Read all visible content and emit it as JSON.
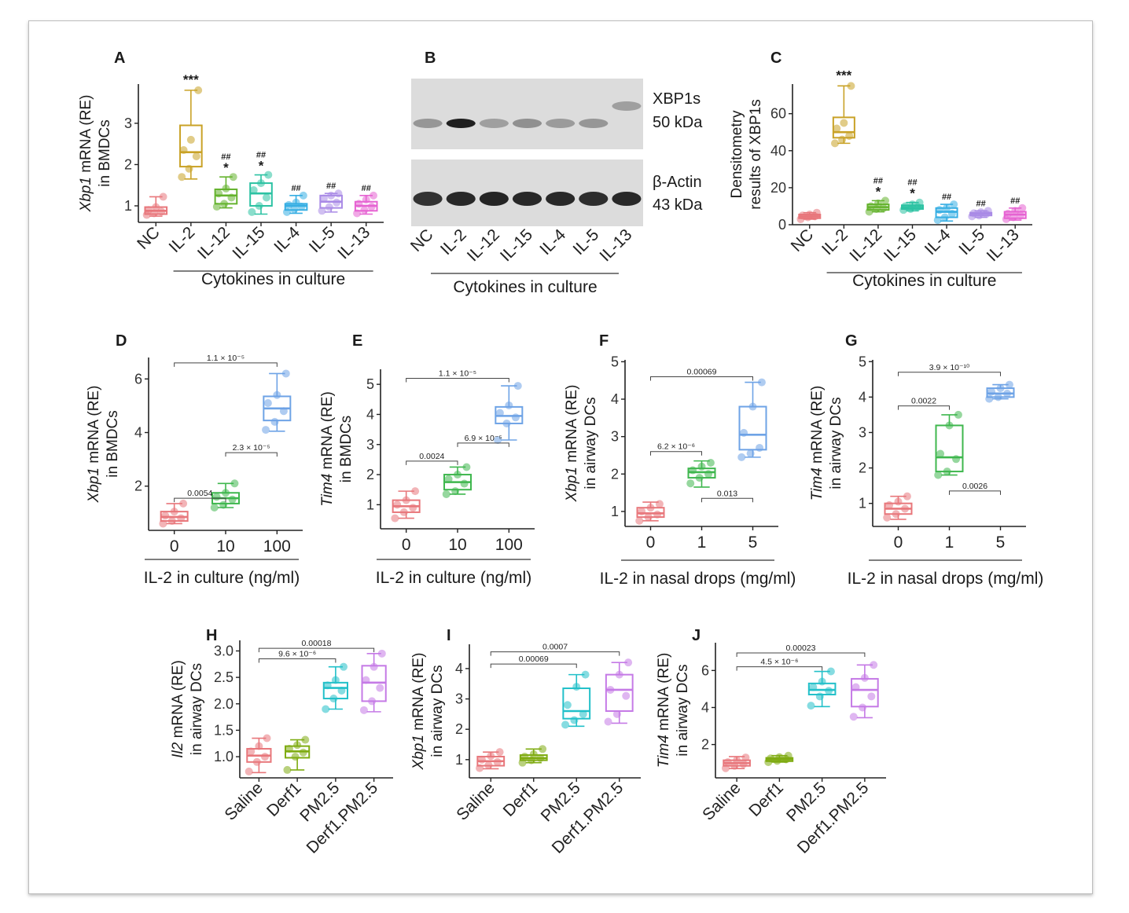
{
  "colors": {
    "NC": "#e8777b",
    "IL-2": "#c9a227",
    "IL-12": "#65b32e",
    "IL-15": "#2cc2a3",
    "IL-4": "#37aee3",
    "IL-5": "#a98ae6",
    "IL-13": "#e663d2",
    "dose0": "#e8777b",
    "dose1": "#3fb74e",
    "dose2": "#6ea3e6",
    "Saline": "#e8777b",
    "Derf1": "#7fac12",
    "PM2.5": "#22c0c9",
    "Derf1.PM2.5": "#c57ae6"
  },
  "blot": {
    "panel_label": "B",
    "lanes": [
      "NC",
      "IL-2",
      "IL-12",
      "IL-15",
      "IL-4",
      "IL-5",
      "IL-13"
    ],
    "group_label": "Cytokines in culture",
    "rows": [
      {
        "name": "XBP1s",
        "size": "50 kDa"
      },
      {
        "name": "β-Actin",
        "size": "43 kDa"
      }
    ]
  },
  "chart_data": [
    {
      "panel": "A",
      "type": "box",
      "ylabel_italic": "Xbp1",
      "ylabel_rest": " mRNA (RE)",
      "ylabel2": "in BMDCs",
      "xlabel": "Cytokines in culture",
      "categories": [
        "NC",
        "IL-2",
        "IL-12",
        "IL-15",
        "IL-4",
        "IL-5",
        "IL-13"
      ],
      "colorkeys": [
        "NC",
        "IL-2",
        "IL-12",
        "IL-15",
        "IL-4",
        "IL-5",
        "IL-13"
      ],
      "ylim": [
        0.6,
        3.95
      ],
      "yticks": [
        1,
        2,
        3
      ],
      "boxes": [
        {
          "min": 0.75,
          "q1": 0.8,
          "med": 0.88,
          "q3": 0.97,
          "max": 1.22,
          "points": [
            0.78,
            0.82,
            0.86,
            0.9,
            0.97,
            1.22
          ]
        },
        {
          "min": 1.65,
          "q1": 1.95,
          "med": 2.3,
          "q3": 2.95,
          "max": 3.8,
          "points": [
            1.7,
            1.9,
            2.2,
            2.35,
            2.6,
            3.8
          ]
        },
        {
          "min": 0.95,
          "q1": 1.05,
          "med": 1.25,
          "q3": 1.4,
          "max": 1.7,
          "points": [
            0.98,
            1.05,
            1.2,
            1.3,
            1.42,
            1.7
          ]
        },
        {
          "min": 0.8,
          "q1": 1.0,
          "med": 1.3,
          "q3": 1.55,
          "max": 1.75,
          "points": [
            0.85,
            1.0,
            1.2,
            1.38,
            1.55,
            1.75
          ]
        },
        {
          "min": 0.82,
          "q1": 0.9,
          "med": 1.0,
          "q3": 1.05,
          "max": 1.25,
          "points": [
            0.85,
            0.92,
            0.98,
            1.02,
            1.08,
            1.25
          ]
        },
        {
          "min": 0.85,
          "q1": 0.95,
          "med": 1.1,
          "q3": 1.25,
          "max": 1.3,
          "points": [
            0.88,
            0.97,
            1.08,
            1.18,
            1.25,
            1.3
          ]
        },
        {
          "min": 0.8,
          "q1": 0.88,
          "med": 1.0,
          "q3": 1.1,
          "max": 1.25,
          "points": [
            0.82,
            0.9,
            0.98,
            1.05,
            1.15,
            1.25
          ]
        }
      ],
      "stars": [
        "",
        "***",
        "*",
        "*",
        "",
        "",
        ""
      ],
      "hashes": [
        "",
        "",
        "##",
        "##",
        "##",
        "##",
        "##"
      ],
      "pvalues": []
    },
    {
      "panel": "C",
      "type": "box",
      "ylabel_italic": "",
      "ylabel_rest": "Densitometry",
      "ylabel2": "results of XBP1s",
      "xlabel": "Cytokines in culture",
      "categories": [
        "NC",
        "IL-2",
        "IL-12",
        "IL-15",
        "IL-4",
        "IL-5",
        "IL-13"
      ],
      "colorkeys": [
        "NC",
        "IL-2",
        "IL-12",
        "IL-15",
        "IL-4",
        "IL-5",
        "IL-13"
      ],
      "ylim": [
        0,
        76
      ],
      "yticks": [
        0,
        20,
        40,
        60
      ],
      "boxes": [
        {
          "min": 3,
          "q1": 3.5,
          "med": 4.5,
          "q3": 5.5,
          "max": 6.5,
          "points": [
            3,
            4,
            4.5,
            5,
            5.5,
            6.5
          ]
        },
        {
          "min": 44,
          "q1": 47,
          "med": 50,
          "q3": 58,
          "max": 75,
          "points": [
            44,
            46,
            48,
            52,
            55,
            75
          ]
        },
        {
          "min": 7,
          "q1": 8,
          "med": 9.5,
          "q3": 11,
          "max": 13,
          "points": [
            7,
            8.5,
            9,
            10,
            11.5,
            13
          ]
        },
        {
          "min": 7.5,
          "q1": 8.5,
          "med": 9.5,
          "q3": 10.5,
          "max": 12,
          "points": [
            8,
            8.5,
            9.5,
            10,
            11,
            12
          ]
        },
        {
          "min": 2,
          "q1": 4,
          "med": 7,
          "q3": 9,
          "max": 11,
          "points": [
            2.5,
            4,
            6,
            8,
            9,
            11
          ]
        },
        {
          "min": 4,
          "q1": 5,
          "med": 6,
          "q3": 6.5,
          "max": 7.5,
          "points": [
            4.5,
            5,
            5.8,
            6.2,
            6.8,
            7.5
          ]
        },
        {
          "min": 2.5,
          "q1": 3.5,
          "med": 5.5,
          "q3": 7,
          "max": 9,
          "points": [
            3,
            4,
            5,
            6,
            7.5,
            9
          ]
        }
      ],
      "stars": [
        "",
        "***",
        "*",
        "*",
        "",
        "",
        ""
      ],
      "hashes": [
        "",
        "",
        "##",
        "##",
        "##",
        "##",
        "##"
      ],
      "pvalues": []
    },
    {
      "panel": "D",
      "type": "box",
      "ylabel_italic": "Xbp1",
      "ylabel_rest": " mRNA (RE)",
      "ylabel2": "in BMDCs",
      "xlabel": "IL-2 in culture (ng/ml)",
      "categories": [
        "0",
        "10",
        "100"
      ],
      "colorkeys": [
        "dose0",
        "dose1",
        "dose2"
      ],
      "ylim": [
        0.35,
        6.8
      ],
      "yticks": [
        2,
        4,
        6
      ],
      "boxes": [
        {
          "min": 0.6,
          "q1": 0.7,
          "med": 0.85,
          "q3": 1.05,
          "max": 1.35,
          "points": [
            0.6,
            0.7,
            0.8,
            0.9,
            1.05,
            1.35
          ]
        },
        {
          "min": 1.2,
          "q1": 1.35,
          "med": 1.55,
          "q3": 1.75,
          "max": 2.1,
          "points": [
            1.2,
            1.3,
            1.5,
            1.6,
            1.75,
            2.1
          ]
        },
        {
          "min": 4.05,
          "q1": 4.45,
          "med": 4.9,
          "q3": 5.35,
          "max": 6.2,
          "points": [
            4.1,
            4.4,
            4.8,
            5.1,
            5.4,
            6.2
          ]
        }
      ],
      "stars": [],
      "hashes": [],
      "pvalues": [
        {
          "text": "1.1 × 10⁻⁵",
          "from": 0,
          "to": 2,
          "y": 6.6
        },
        {
          "text": "2.3 × 10⁻⁵",
          "from": 1,
          "to": 2,
          "y": 3.25
        },
        {
          "text": "0.0054",
          "from": 0,
          "to": 1,
          "y": 1.55
        }
      ]
    },
    {
      "panel": "E",
      "type": "box",
      "ylabel_italic": "Tim4",
      "ylabel_rest": " mRNA (RE)",
      "ylabel2": "in BMDCs",
      "xlabel": "IL-2 in culture (ng/ml)",
      "categories": [
        "0",
        "10",
        "100"
      ],
      "colorkeys": [
        "dose0",
        "dose1",
        "dose2"
      ],
      "ylim": [
        0.2,
        5.5
      ],
      "yticks": [
        1,
        2,
        3,
        4,
        5
      ],
      "boxes": [
        {
          "min": 0.55,
          "q1": 0.75,
          "med": 0.95,
          "q3": 1.15,
          "max": 1.45,
          "points": [
            0.55,
            0.75,
            0.9,
            1.0,
            1.15,
            1.45
          ]
        },
        {
          "min": 1.35,
          "q1": 1.5,
          "med": 1.75,
          "q3": 2.0,
          "max": 2.25,
          "points": [
            1.35,
            1.45,
            1.7,
            1.85,
            2.0,
            2.25
          ]
        },
        {
          "min": 3.15,
          "q1": 3.7,
          "med": 3.95,
          "q3": 4.25,
          "max": 4.95,
          "points": [
            3.15,
            3.7,
            3.9,
            4.05,
            4.3,
            4.95
          ]
        }
      ],
      "stars": [],
      "hashes": [],
      "pvalues": [
        {
          "text": "1.1 × 10⁻⁵",
          "from": 0,
          "to": 2,
          "y": 5.2
        },
        {
          "text": "6.9 × 10⁻⁵",
          "from": 1,
          "to": 2,
          "y": 3.05
        },
        {
          "text": "0.0024",
          "from": 0,
          "to": 1,
          "y": 2.45
        }
      ]
    },
    {
      "panel": "F",
      "type": "box",
      "ylabel_italic": "Xbp1",
      "ylabel_rest": " mRNA (RE)",
      "ylabel2": "in airway DCs",
      "xlabel": "IL-2 in nasal drops (mg/ml)",
      "categories": [
        "0",
        "1",
        "5"
      ],
      "colorkeys": [
        "dose0",
        "dose1",
        "dose2"
      ],
      "ylim": [
        0.6,
        5.05
      ],
      "yticks": [
        1,
        2,
        3,
        4,
        5
      ],
      "boxes": [
        {
          "min": 0.75,
          "q1": 0.85,
          "med": 0.95,
          "q3": 1.1,
          "max": 1.25,
          "points": [
            0.75,
            0.85,
            0.92,
            1.0,
            1.1,
            1.2
          ]
        },
        {
          "min": 1.65,
          "q1": 1.9,
          "med": 2.05,
          "q3": 2.15,
          "max": 2.35,
          "points": [
            1.75,
            1.9,
            2.0,
            2.1,
            2.2,
            2.3
          ]
        },
        {
          "min": 2.45,
          "q1": 2.65,
          "med": 3.05,
          "q3": 3.8,
          "max": 4.45,
          "points": [
            2.45,
            2.55,
            2.7,
            3.1,
            3.8,
            4.45
          ]
        }
      ],
      "stars": [],
      "hashes": [],
      "pvalues": [
        {
          "text": "0.00069",
          "from": 0,
          "to": 2,
          "y": 4.6
        },
        {
          "text": "6.2 × 10⁻⁶",
          "from": 0,
          "to": 1,
          "y": 2.6
        },
        {
          "text": "0.013",
          "from": 1,
          "to": 2,
          "y": 1.35
        }
      ]
    },
    {
      "panel": "G",
      "type": "box",
      "ylabel_italic": "Tim4",
      "ylabel_rest": " mRNA (RE)",
      "ylabel2": "in airway DCs",
      "xlabel": "IL-2 in nasal drops (mg/ml)",
      "categories": [
        "0",
        "1",
        "5"
      ],
      "colorkeys": [
        "dose0",
        "dose1",
        "dose2"
      ],
      "ylim": [
        0.35,
        5.05
      ],
      "yticks": [
        1,
        2,
        3,
        4,
        5
      ],
      "boxes": [
        {
          "min": 0.55,
          "q1": 0.7,
          "med": 0.85,
          "q3": 1.0,
          "max": 1.2,
          "points": [
            0.6,
            0.7,
            0.85,
            0.95,
            1.05,
            1.2
          ]
        },
        {
          "min": 1.8,
          "q1": 1.9,
          "med": 2.3,
          "q3": 3.2,
          "max": 3.5,
          "points": [
            1.8,
            1.9,
            2.25,
            2.4,
            3.2,
            3.5
          ]
        },
        {
          "min": 3.95,
          "q1": 4.0,
          "med": 4.1,
          "q3": 4.25,
          "max": 4.35,
          "points": [
            3.95,
            4.0,
            4.1,
            4.15,
            4.25,
            4.35
          ]
        }
      ],
      "stars": [],
      "hashes": [],
      "pvalues": [
        {
          "text": "3.9 × 10⁻¹⁰",
          "from": 0,
          "to": 2,
          "y": 4.7
        },
        {
          "text": "0.0022",
          "from": 0,
          "to": 1,
          "y": 3.75
        },
        {
          "text": "0.0026",
          "from": 1,
          "to": 2,
          "y": 1.35
        }
      ]
    },
    {
      "panel": "H",
      "type": "box",
      "ylabel_italic": "Il2",
      "ylabel_rest": " mRNA (RE)",
      "ylabel2": "in airway DCs",
      "xlabel": "",
      "categories": [
        "Saline",
        "Derf1",
        "PM2.5",
        "Derf1.PM2.5"
      ],
      "colorkeys": [
        "Saline",
        "Derf1",
        "PM2.5",
        "Derf1.PM2.5"
      ],
      "ylim": [
        0.6,
        3.2
      ],
      "yticks": [
        1.0,
        1.5,
        2.0,
        2.5,
        3.0
      ],
      "tickdec": 1,
      "boxes": [
        {
          "min": 0.7,
          "q1": 0.9,
          "med": 1.02,
          "q3": 1.15,
          "max": 1.35,
          "points": [
            0.72,
            0.9,
            1.0,
            1.1,
            1.2,
            1.35
          ]
        },
        {
          "min": 0.75,
          "q1": 0.98,
          "med": 1.1,
          "q3": 1.2,
          "max": 1.32,
          "points": [
            0.75,
            1.0,
            1.08,
            1.15,
            1.22,
            1.32
          ]
        },
        {
          "min": 1.9,
          "q1": 2.1,
          "med": 2.3,
          "q3": 2.4,
          "max": 2.7,
          "points": [
            1.9,
            2.1,
            2.25,
            2.35,
            2.45,
            2.7
          ]
        },
        {
          "min": 1.85,
          "q1": 2.05,
          "med": 2.4,
          "q3": 2.72,
          "max": 2.95,
          "points": [
            1.88,
            2.05,
            2.3,
            2.45,
            2.7,
            2.95
          ]
        }
      ],
      "stars": [],
      "hashes": [],
      "pvalues": [
        {
          "text": "0.00018",
          "from": 0,
          "to": 3,
          "y": 3.05
        },
        {
          "text": "9.6 × 10⁻⁶",
          "from": 0,
          "to": 2,
          "y": 2.85
        }
      ]
    },
    {
      "panel": "I",
      "type": "box",
      "ylabel_italic": "Xbp1",
      "ylabel_rest": " mRNA (RE)",
      "ylabel2": "in airway DCs",
      "xlabel": "",
      "categories": [
        "Saline",
        "Derf1",
        "PM2.5",
        "Derf1.PM2.5"
      ],
      "colorkeys": [
        "Saline",
        "Derf1",
        "PM2.5",
        "Derf1.PM2.5"
      ],
      "ylim": [
        0.4,
        4.8
      ],
      "yticks": [
        1,
        2,
        3,
        4
      ],
      "boxes": [
        {
          "min": 0.7,
          "q1": 0.8,
          "med": 0.95,
          "q3": 1.1,
          "max": 1.25,
          "points": [
            0.72,
            0.82,
            0.92,
            1.0,
            1.12,
            1.25
          ]
        },
        {
          "min": 0.9,
          "q1": 0.98,
          "med": 1.05,
          "q3": 1.15,
          "max": 1.35,
          "points": [
            0.9,
            0.98,
            1.05,
            1.1,
            1.18,
            1.35
          ]
        },
        {
          "min": 2.1,
          "q1": 2.35,
          "med": 2.6,
          "q3": 3.35,
          "max": 3.8,
          "points": [
            2.15,
            2.3,
            2.5,
            2.8,
            3.4,
            3.8
          ]
        },
        {
          "min": 2.2,
          "q1": 2.6,
          "med": 3.3,
          "q3": 3.8,
          "max": 4.2,
          "points": [
            2.25,
            2.5,
            3.1,
            3.3,
            3.8,
            4.2
          ]
        }
      ],
      "stars": [],
      "hashes": [],
      "pvalues": [
        {
          "text": "0.0007",
          "from": 0,
          "to": 3,
          "y": 4.55
        },
        {
          "text": "0.00069",
          "from": 0,
          "to": 2,
          "y": 4.15
        }
      ]
    },
    {
      "panel": "J",
      "type": "box",
      "ylabel_italic": "Tim4",
      "ylabel_rest": " mRNA (RE)",
      "ylabel2": "in airway DCs",
      "xlabel": "",
      "categories": [
        "Saline",
        "Derf1",
        "PM2.5",
        "Derf1.PM2.5"
      ],
      "colorkeys": [
        "Saline",
        "Derf1",
        "PM2.5",
        "Derf1.PM2.5"
      ],
      "ylim": [
        0.2,
        7.5
      ],
      "yticks": [
        2,
        4,
        6
      ],
      "boxes": [
        {
          "min": 0.7,
          "q1": 0.85,
          "med": 1.0,
          "q3": 1.15,
          "max": 1.35,
          "points": [
            0.72,
            0.85,
            0.95,
            1.05,
            1.15,
            1.3
          ]
        },
        {
          "min": 1.05,
          "q1": 1.1,
          "med": 1.2,
          "q3": 1.28,
          "max": 1.4,
          "points": [
            1.05,
            1.12,
            1.2,
            1.25,
            1.32,
            1.4
          ]
        },
        {
          "min": 4.05,
          "q1": 4.7,
          "med": 4.95,
          "q3": 5.3,
          "max": 5.95,
          "points": [
            4.1,
            4.6,
            4.9,
            5.1,
            5.4,
            5.95
          ]
        },
        {
          "min": 3.45,
          "q1": 4.05,
          "med": 4.95,
          "q3": 5.55,
          "max": 6.3,
          "points": [
            3.5,
            4.0,
            4.6,
            5.1,
            5.6,
            6.3
          ]
        }
      ],
      "stars": [],
      "hashes": [],
      "pvalues": [
        {
          "text": "0.00023",
          "from": 0,
          "to": 3,
          "y": 6.95
        },
        {
          "text": "4.5 × 10⁻⁶",
          "from": 0,
          "to": 2,
          "y": 6.2
        }
      ]
    }
  ]
}
